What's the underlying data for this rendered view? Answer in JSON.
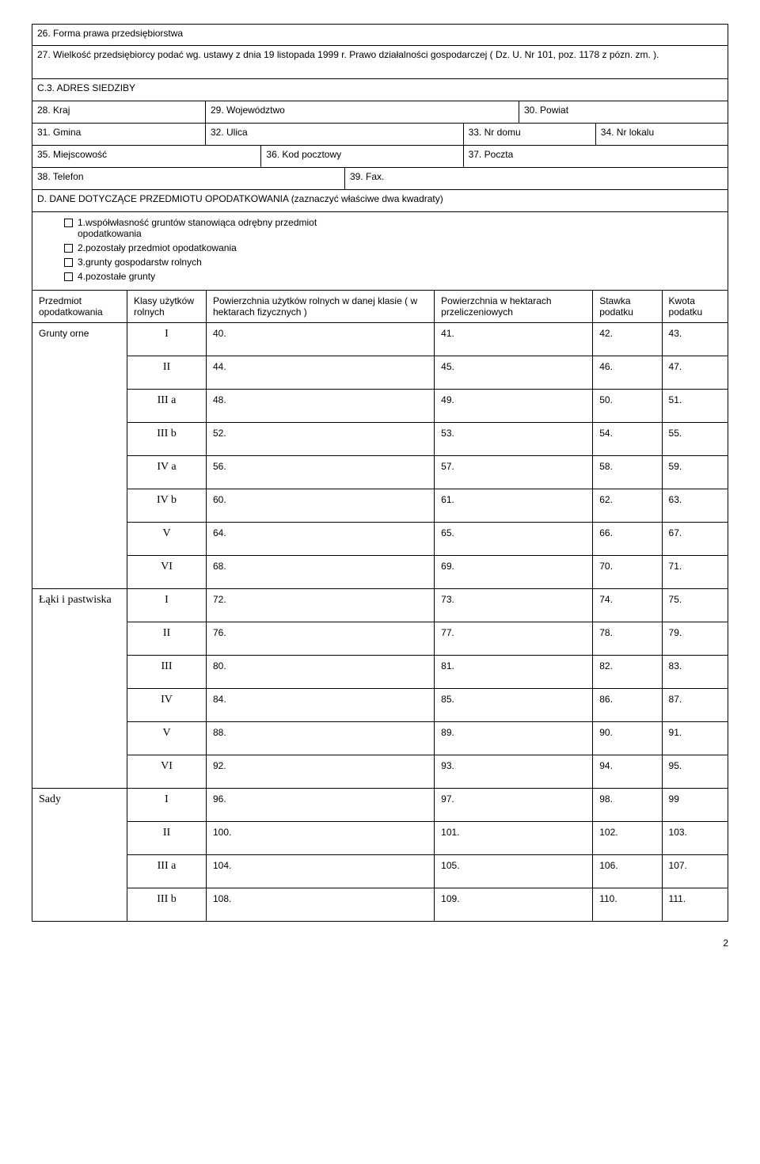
{
  "fields": {
    "f26": "26. Forma prawa przedsiębiorstwa",
    "f27": "27. Wielkość przedsiębiorcy podać wg. ustawy z dnia 19 listopada 1999 r. Prawo działalności gospodarczej ( Dz. U. Nr 101, poz. 1178 z pózn. zm. ).",
    "c3": "C.3. ADRES SIEDZIBY",
    "f28": "28. Kraj",
    "f29": "29. Województwo",
    "f30": "30. Powiat",
    "f31": "31. Gmina",
    "f32": "32. Ulica",
    "f33": "33. Nr domu",
    "f34": "34. Nr lokalu",
    "f35": "35. Miejscowość",
    "f36": "36. Kod pocztowy",
    "f37": "37. Poczta",
    "f38": "38. Telefon",
    "f39": "39. Fax.",
    "d_title": "D. DANE DOTYCZĄCE PRZEDMIOTU OPODATKOWANIA (zaznaczyć właściwe  dwa kwadraty)",
    "opt1": "1.współwłasność gruntów stanowiąca odrębny przedmiot opodatkowania",
    "opt2": "2.pozostały przedmiot opodatkowania",
    "opt3": "3.grunty gospodarstw rolnych",
    "opt4": "4.pozostałe grunty"
  },
  "headers": {
    "h1": "Przedmiot opodatkowania",
    "h2": "Klasy użytków rolnych",
    "h3": "Powierzchnia użytków rolnych w danej klasie ( w hektarach fizycznych )",
    "h4": "Powierzchnia w hektarach przeliczeniowych",
    "h5": "Stawka podatku",
    "h6": "Kwota podatku"
  },
  "groups": [
    {
      "name": "Grunty orne",
      "rows": [
        {
          "k": "I",
          "c": [
            "40.",
            "41.",
            "42.",
            "43."
          ]
        },
        {
          "k": "II",
          "c": [
            "44.",
            "45.",
            "46.",
            "47."
          ]
        },
        {
          "k": "III a",
          "c": [
            "48.",
            "49.",
            "50.",
            "51."
          ]
        },
        {
          "k": "III b",
          "c": [
            "52.",
            "53.",
            "54.",
            "55."
          ]
        },
        {
          "k": "IV a",
          "c": [
            "56.",
            "57.",
            "58.",
            "59."
          ]
        },
        {
          "k": "IV b",
          "c": [
            "60.",
            "61.",
            "62.",
            "63."
          ]
        },
        {
          "k": "V",
          "c": [
            "64.",
            "65.",
            "66.",
            "67."
          ]
        },
        {
          "k": "VI",
          "c": [
            "68.",
            "69.",
            "70.",
            "71."
          ]
        }
      ]
    },
    {
      "name": "Łąki i pastwiska",
      "rows": [
        {
          "k": "I",
          "c": [
            "72.",
            "73.",
            "74.",
            "75."
          ]
        },
        {
          "k": "II",
          "c": [
            "76.",
            "77.",
            "78.",
            "79."
          ]
        },
        {
          "k": "III",
          "c": [
            "80.",
            "81.",
            "82.",
            "83."
          ]
        },
        {
          "k": "IV",
          "c": [
            "84.",
            "85.",
            "86.",
            "87."
          ]
        },
        {
          "k": "V",
          "c": [
            "88.",
            "89.",
            "90.",
            "91."
          ]
        },
        {
          "k": "VI",
          "c": [
            "92.",
            "93.",
            "94.",
            "95."
          ]
        }
      ]
    },
    {
      "name": "Sady",
      "rows": [
        {
          "k": "I",
          "c": [
            "96.",
            "97.",
            "98.",
            "99"
          ]
        },
        {
          "k": "II",
          "c": [
            "100.",
            "101.",
            "102.",
            "103."
          ]
        },
        {
          "k": "III a",
          "c": [
            "104.",
            "105.",
            "106.",
            "107."
          ]
        },
        {
          "k": "III b",
          "c": [
            "108.",
            "109.",
            "110.",
            "111."
          ]
        }
      ]
    }
  ],
  "pageNumber": "2"
}
